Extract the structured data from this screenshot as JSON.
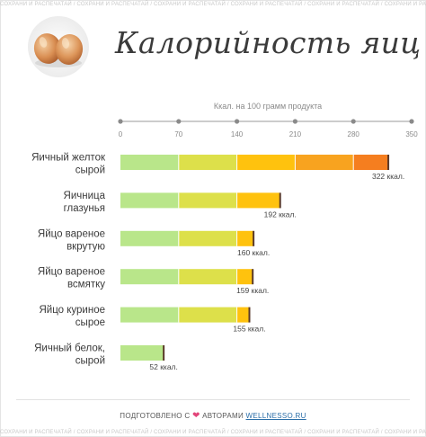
{
  "watermark": "СОХРАНИ И РАСПЕЧАТАЙ / СОХРАНИ И РАСПЕЧАТАЙ / СОХРАНИ И РАСПЕЧАТАЙ / СОХРАНИ И РАСПЕЧАТАЙ / СОХРАНИ И РАСПЕЧАТАЙ / СОХРАНИ И РАСПЕЧАТАЙ / СОХРАНИ И РАСПЕЧАТАЙ",
  "logo": {
    "icon": "eggs-icon"
  },
  "title": "Калорийность яиц",
  "footer": {
    "prefix": "ПОДГОТОВЛЕНО С",
    "heart": "❤",
    "middle": "АВТОРАМИ",
    "link": "WELLNESSO.RU"
  },
  "colors": {
    "axis": "#9a9a9a",
    "segments": [
      "#b9e68a",
      "#dde04a",
      "#ffc20e",
      "#f8a31f",
      "#f57e1f",
      "#ee1f45"
    ],
    "end_marker": "#5a3a2a"
  },
  "chart_data": {
    "type": "bar",
    "orientation": "horizontal",
    "xlabel": "Ккал. на 100 грамм продукта",
    "xlim": [
      0,
      350
    ],
    "ticks": [
      0,
      70,
      140,
      210,
      280,
      350
    ],
    "tick_labels": [
      "0",
      "70",
      "140",
      "210",
      "280",
      "350"
    ],
    "categories": [
      [
        "Яичный желток",
        "сырой"
      ],
      [
        "Яичница",
        "глазунья"
      ],
      [
        "Яйцо вареное",
        "вкрутую"
      ],
      [
        "Яйцо вареное",
        "всмятку"
      ],
      [
        "Яйцо куриное",
        "сырое"
      ],
      [
        "Яичный белок,",
        "сырой"
      ]
    ],
    "values": [
      322,
      192,
      160,
      159,
      155,
      52
    ],
    "value_labels": [
      "322 ккал.",
      "192 ккал.",
      "160 ккал.",
      "159 ккал.",
      "155 ккал.",
      "52 ккал."
    ],
    "grid": false,
    "legend": "none"
  }
}
